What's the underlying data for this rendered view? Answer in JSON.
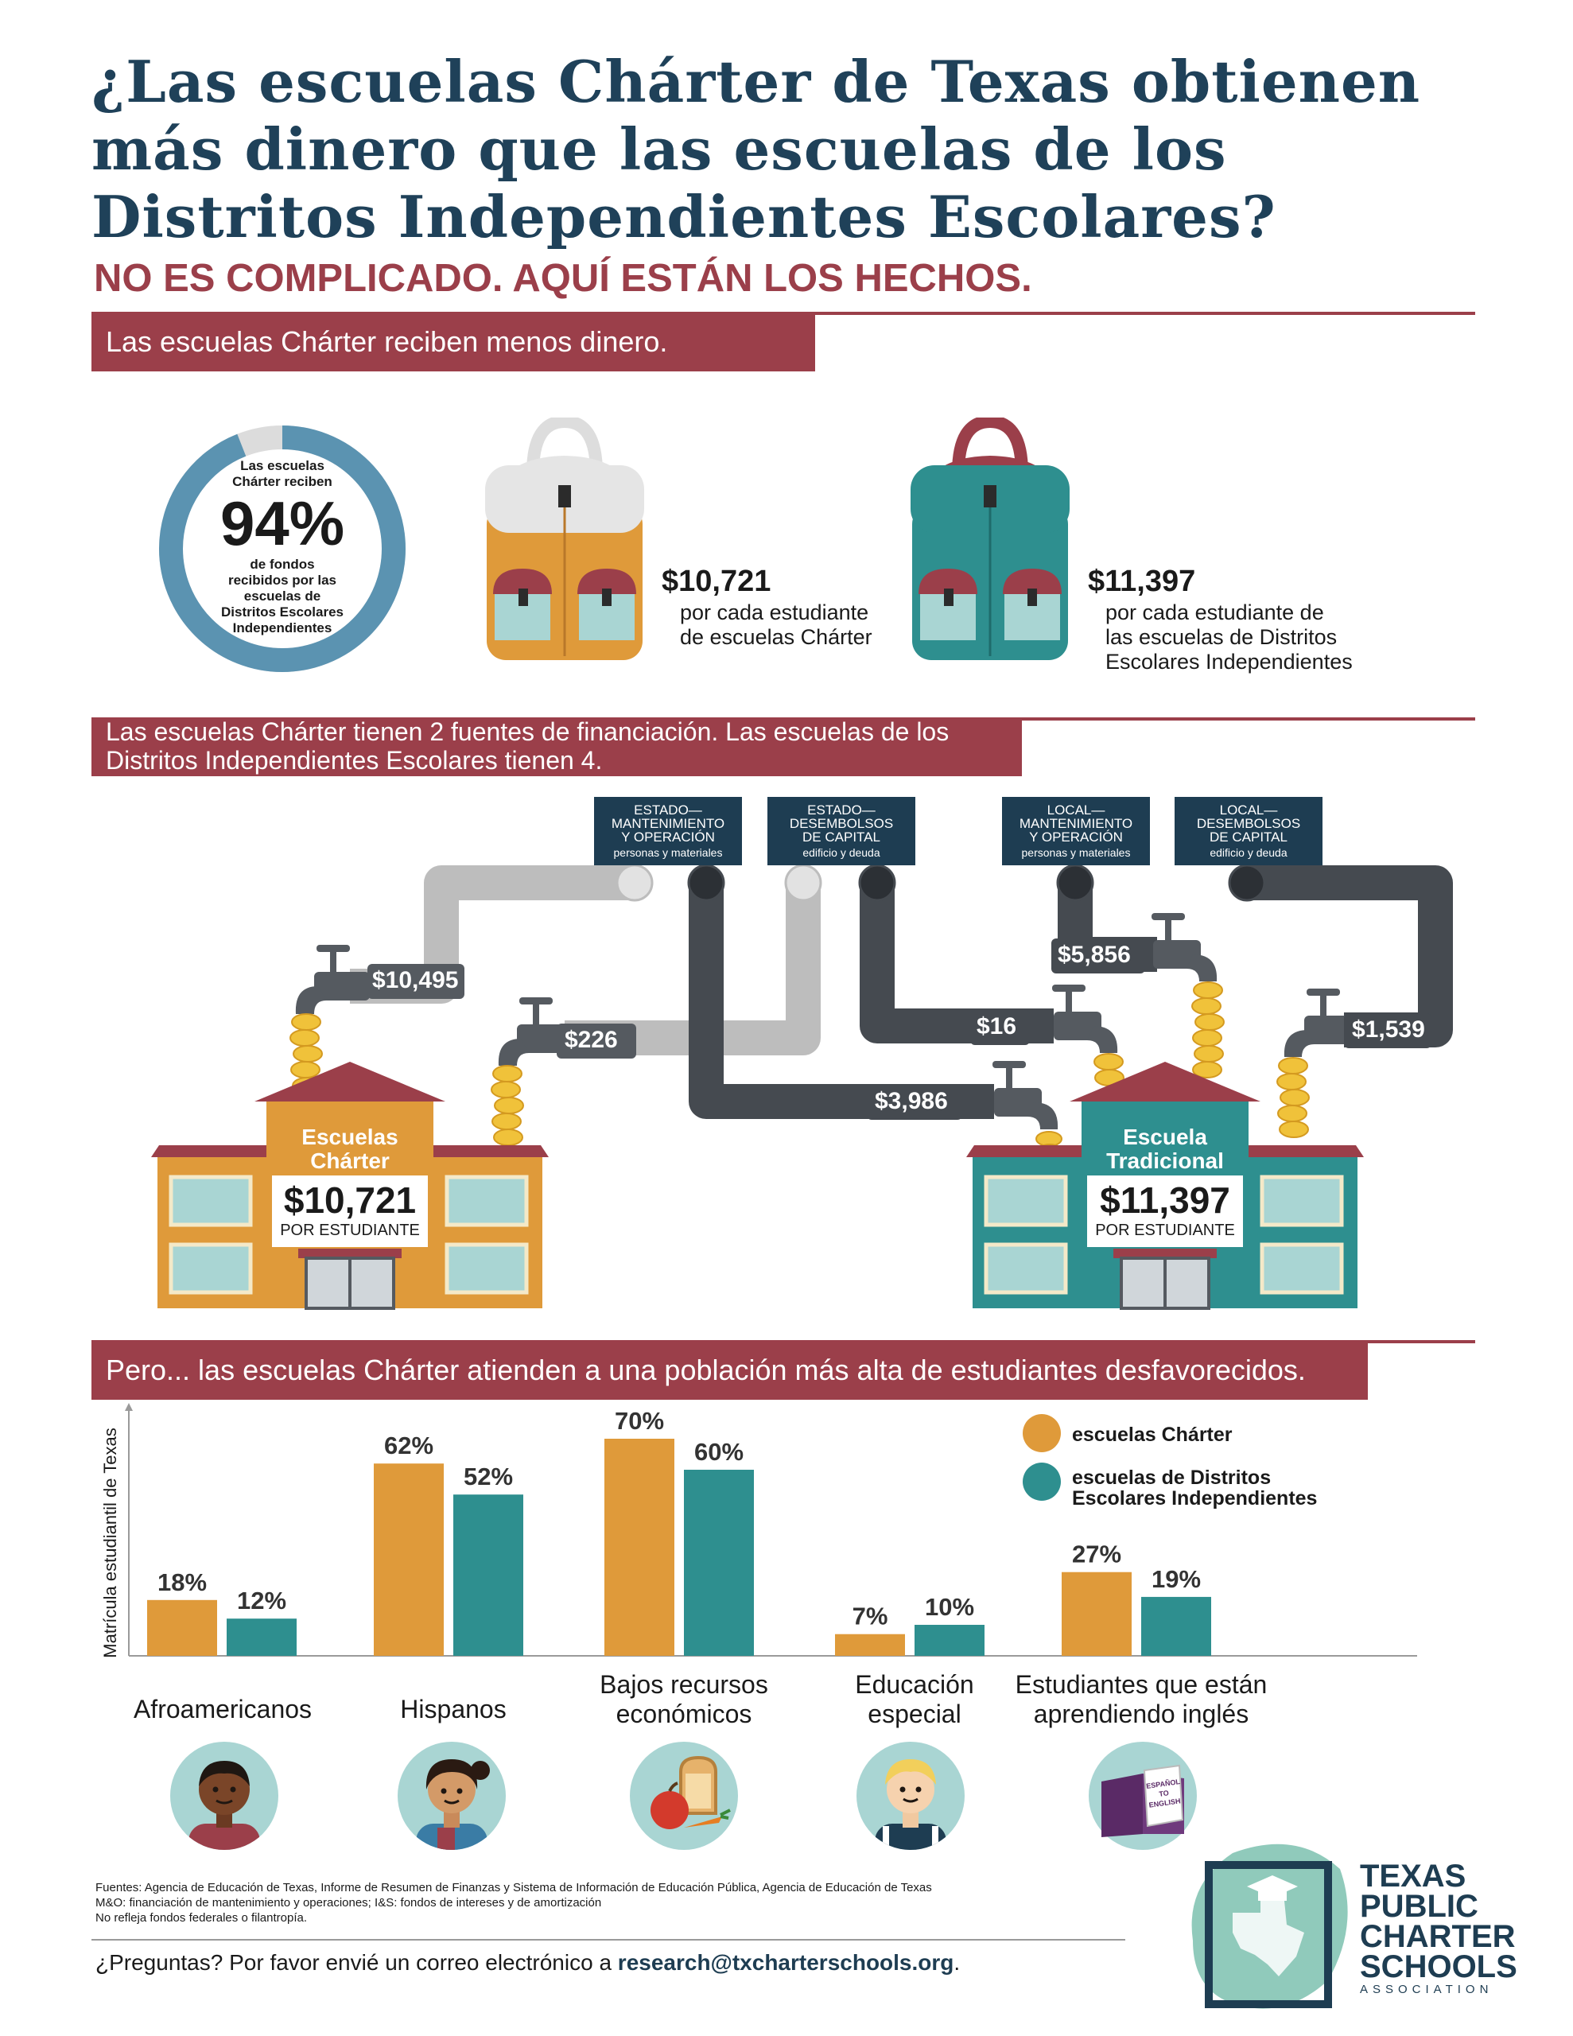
{
  "header": {
    "title": "¿Las escuelas Chárter de Texas obtienen más dinero que las escuelas de los Distritos Independientes Escolares?",
    "subtitle": "NO ES COMPLICADO. AQUÍ ESTÁN LOS HECHOS."
  },
  "section1": {
    "banner": "Las escuelas Chárter reciben menos dinero.",
    "donut": {
      "percent": 94,
      "label": "94%",
      "top_text": [
        "Las escuelas",
        "Chárter reciben"
      ],
      "bottom_text": [
        "de fondos",
        "recibidos por las",
        "escuelas de",
        "Distritos Escolares",
        "Independientes"
      ]
    },
    "charter_amount": "$10,721",
    "charter_desc": [
      "por cada estudiante",
      "de escuelas Chárter"
    ],
    "isd_amount": "$11,397",
    "isd_desc": [
      "por cada estudiante de",
      "las escuelas de Distritos",
      "Escolares Independientes"
    ]
  },
  "section2": {
    "banner_lines": [
      "Las escuelas Chárter tienen 2 fuentes de financiación. Las escuelas de los",
      "Distritos Independientes Escolares tienen 4."
    ],
    "sources": [
      {
        "lines": [
          "ESTADO—",
          "MANTENIMIENTO",
          "Y OPERACIÓN"
        ],
        "sub": "personas y materiales"
      },
      {
        "lines": [
          "ESTADO—",
          "DESEMBOLSOS",
          "DE CAPITAL"
        ],
        "sub": "edificio y deuda"
      },
      {
        "lines": [
          "LOCAL—",
          "MANTENIMIENTO",
          "Y OPERACIÓN"
        ],
        "sub": "personas y materiales"
      },
      {
        "lines": [
          "LOCAL—",
          "DESEMBOLSOS",
          "DE CAPITAL"
        ],
        "sub": "edificio y deuda"
      }
    ],
    "flows": {
      "charter_state_mo": "$10,495",
      "charter_state_capital": "$226",
      "isd_state_capital": "$16",
      "isd_state_mo": "$3,986",
      "isd_local_mo": "$5,856",
      "isd_local_capital": "$1,539"
    },
    "charter_school": {
      "name": [
        "Escuelas",
        "Chárter"
      ],
      "amount": "$10,721",
      "per": "POR ESTUDIANTE"
    },
    "isd_school": {
      "name": [
        "Escuela",
        "Tradicional"
      ],
      "amount": "$11,397",
      "per": "POR ESTUDIANTE"
    }
  },
  "section3": {
    "banner": "Pero... las escuelas Chárter atienden a una población más alta de estudiantes desfavorecidos."
  },
  "chart_data": {
    "type": "bar",
    "title": "",
    "xlabel": "",
    "ylabel": "Matrícula estudiantil de Texas",
    "ylim": [
      0,
      80
    ],
    "categories": [
      "Afroamericanos",
      "Hispanos",
      "Bajos recursos económicos",
      "Educación especial",
      "Estudiantes que están aprendiendo inglés"
    ],
    "category_lines": [
      [
        "Afroamericanos"
      ],
      [
        "Hispanos"
      ],
      [
        "Bajos recursos",
        "económicos"
      ],
      [
        "Educación",
        "especial"
      ],
      [
        "Estudiantes que están",
        "aprendiendo inglés"
      ]
    ],
    "series": [
      {
        "name": "escuelas Chárter",
        "values": [
          18,
          62,
          70,
          7,
          27
        ],
        "labels": [
          "18%",
          "62%",
          "70%",
          "7%",
          "27%"
        ],
        "color": "#df9a3a"
      },
      {
        "name": "escuelas de Distritos Escolares Independientes",
        "values": [
          12,
          52,
          60,
          10,
          19
        ],
        "labels": [
          "12%",
          "52%",
          "60%",
          "10%",
          "19%"
        ],
        "color": "#2e8f8f"
      }
    ],
    "legend": {
      "position": "top-right",
      "lines": [
        [
          "escuelas Chárter"
        ],
        [
          "escuelas de Distritos",
          "Escolares Independientes"
        ]
      ]
    },
    "grid": false
  },
  "footer": {
    "sources": [
      "Fuentes: Agencia de Educación de Texas, Informe de Resumen de Finanzas y Sistema de Información de Educación Pública, Agencia de Educación de Texas",
      "M&O: financiación de mantenimiento y operaciones; I&S: fondos de intereses y de amortización",
      "No refleja fondos federales o filantropía."
    ],
    "question": "¿Preguntas? Por favor envié un correo electrónico a ",
    "email": "research@txcharterschools.org",
    "period": ".",
    "logo_lines": [
      "TEXAS",
      "PUBLIC",
      "CHARTER",
      "SCHOOLS",
      "ASSOCIATION"
    ],
    "book_text": [
      "ESPAÑOL",
      "TO",
      "ENGLISH"
    ]
  },
  "colors": {
    "navy": "#1f4159",
    "maroon": "#9b3f4a",
    "orange": "#df9a3a",
    "teal": "#2e8f8f",
    "donut": "#5b93b1"
  }
}
